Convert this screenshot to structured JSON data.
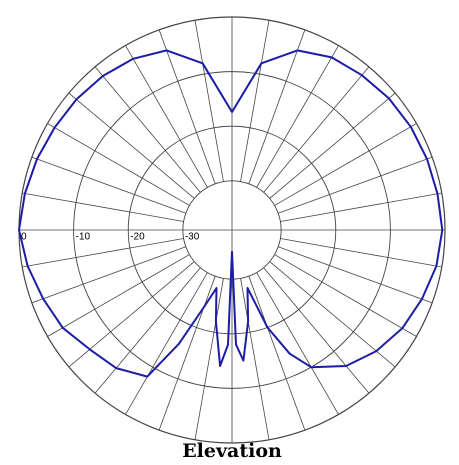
{
  "chart_data": {
    "type": "polar",
    "title": "Elevation",
    "theta": [
      0,
      10,
      20,
      30,
      40,
      50,
      60,
      70,
      80,
      90,
      100,
      110,
      120,
      130,
      140,
      150,
      155,
      160,
      165,
      170,
      175,
      178,
      180,
      182,
      185,
      190,
      195,
      200,
      205,
      210,
      220,
      230,
      240,
      250,
      260,
      270,
      280,
      290,
      300,
      310,
      320,
      330,
      340,
      350
    ],
    "values": [
      -17.4,
      -8,
      -4,
      -2.5,
      -2,
      -1.5,
      -1.2,
      -1,
      -0.8,
      -0.5,
      -1,
      -2,
      -3,
      -4.5,
      -6.5,
      -10,
      -14,
      -20,
      -28,
      -22,
      -15,
      -18,
      -35,
      -18,
      -14,
      -22,
      -28,
      -24,
      -16,
      -8,
      -6,
      -5,
      -3.2,
      -2.2,
      -1,
      0,
      -0.5,
      -1,
      -1.5,
      -1.8,
      -2.2,
      -2.8,
      -4,
      -8
    ],
    "color": "#1c1ca8",
    "rlim": [
      -39,
      0
    ],
    "rticks": [
      0,
      -10,
      -20,
      -30
    ],
    "grid": true
  }
}
